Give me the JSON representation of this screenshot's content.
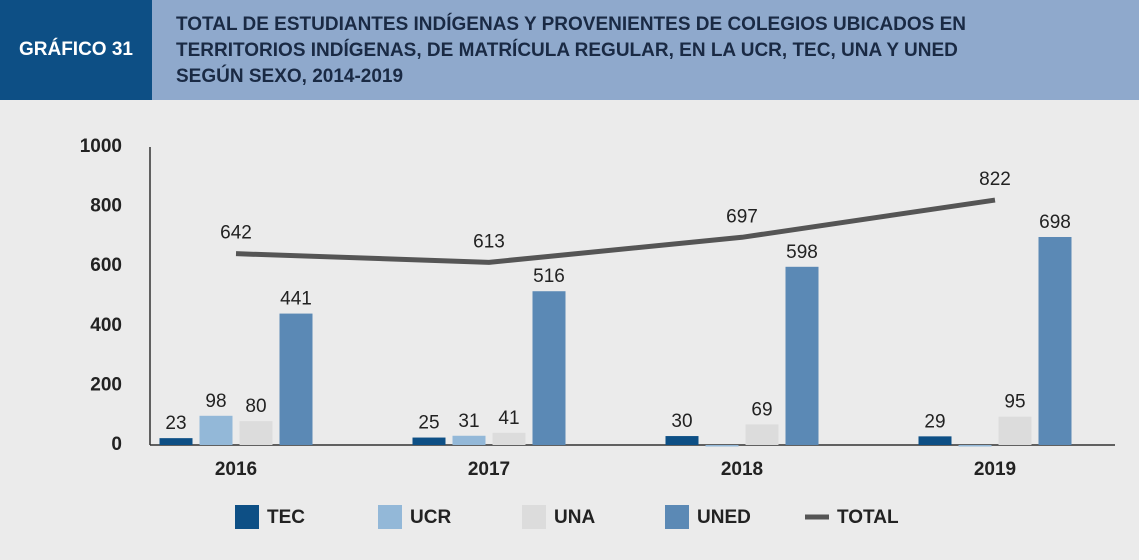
{
  "chart_data": {
    "type": "bar",
    "label": "GRÁFICO 31",
    "title": [
      "TOTAL DE ESTUDIANTES INDÍGENAS Y PROVENIENTES DE COLEGIOS UBICADOS EN",
      "TERRITORIOS INDÍGENAS, DE MATRÍCULA REGULAR, EN LA UCR, TEC, UNA Y UNED",
      "SEGÚN SEXO, 2014-2019"
    ],
    "categories": [
      "2016",
      "2017",
      "2018",
      "2019"
    ],
    "series": [
      {
        "name": "TEC",
        "color": "#0d4f85",
        "values": [
          23,
          25,
          30,
          29
        ]
      },
      {
        "name": "UCR",
        "color": "#93b8d8",
        "values": [
          98,
          31,
          0,
          0
        ],
        "value_labels": [
          "98",
          "31",
          null,
          null
        ]
      },
      {
        "name": "UNA",
        "color": "#dcdcdc",
        "values": [
          80,
          41,
          69,
          95
        ]
      },
      {
        "name": "UNED",
        "color": "#5b89b5",
        "values": [
          441,
          516,
          598,
          698
        ]
      },
      {
        "name": "TOTAL",
        "type": "line",
        "color": "#555555",
        "values": [
          642,
          613,
          697,
          822
        ]
      }
    ],
    "ylim": [
      0,
      1000
    ],
    "yticks": [
      0,
      200,
      400,
      600,
      800,
      1000
    ],
    "grid": false,
    "legend": "bottom"
  }
}
